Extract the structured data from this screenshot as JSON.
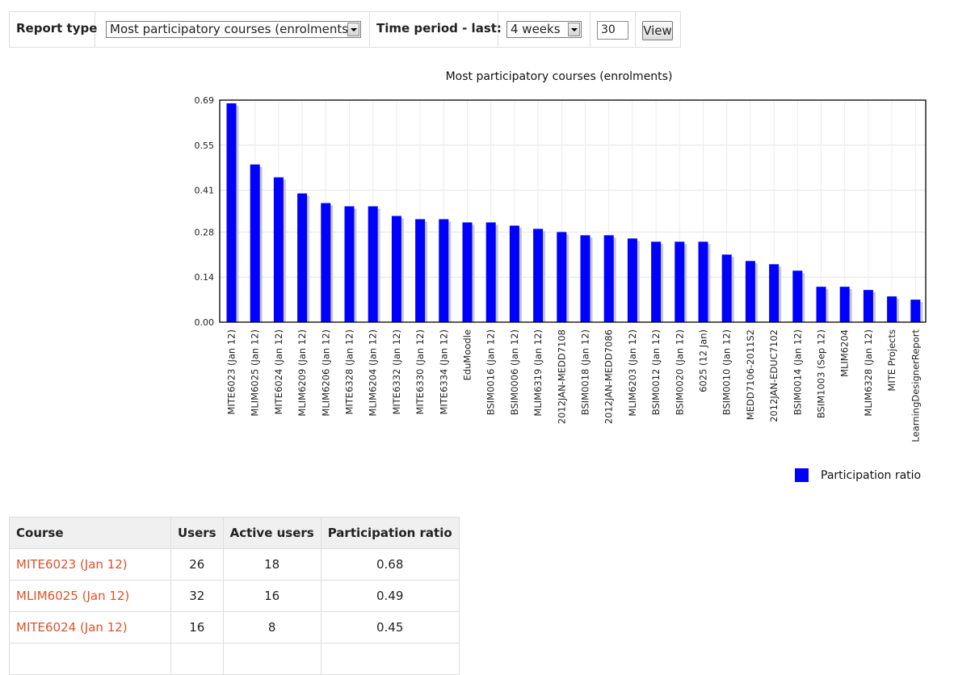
{
  "form": {
    "report_type_label": "Report type",
    "report_type_value": "Most participatory courses (enrolments)",
    "time_period_label": "Time period - last:",
    "time_period_value": "4 weeks",
    "count_value": "30",
    "view_button": "View"
  },
  "chart_data": {
    "type": "bar",
    "title": "Most participatory courses (enrolments)",
    "xlabel": "",
    "ylabel": "",
    "ylim": [
      0,
      0.69
    ],
    "yticks": [
      "0.00",
      "0.14",
      "0.28",
      "0.41",
      "0.55",
      "0.69"
    ],
    "grid": true,
    "legend_position": "bottom-right",
    "categories": [
      "MITE6023 (Jan 12)",
      "MLIM6025 (Jan 12)",
      "MITE6024 (Jan 12)",
      "MLIM6209 (Jan 12)",
      "MLIM6206 (Jan 12)",
      "MITE6328 (Jan 12)",
      "MLIM6204 (Jan 12)",
      "MITE6332 (Jan 12)",
      "MITE6330 (Jan 12)",
      "MITE6334 (Jan 12)",
      "EduMoodle",
      "BSIM0016 (Jan 12)",
      "BSIM0006 (Jan 12)",
      "MLIM6319 (Jan 12)",
      "2012JAN-MEDD7108",
      "BSIM0018 (Jan 12)",
      "2012JAN-MEDD7086",
      "MLIM6203 (Jan 12)",
      "BSIM0012 (Jan 12)",
      "BSIM0020 (Jan 12)",
      "6025 (12 Jan)",
      "BSIM0010 (Jan 12)",
      "MEDD7106-2011S2",
      "2012JAN-EDUC7102",
      "BSIM0014 (Jan 12)",
      "BSIM1003 (Sep 12)",
      "MLIM6204",
      "MLIM6328 (Jan 12)",
      "MITE Projects",
      "LearningDesignerReport"
    ],
    "series": [
      {
        "name": "Participation ratio",
        "color": "#0000ff",
        "values": [
          0.68,
          0.49,
          0.45,
          0.4,
          0.37,
          0.36,
          0.36,
          0.33,
          0.32,
          0.32,
          0.31,
          0.31,
          0.3,
          0.29,
          0.28,
          0.27,
          0.27,
          0.26,
          0.25,
          0.25,
          0.25,
          0.21,
          0.19,
          0.18,
          0.16,
          0.11,
          0.11,
          0.1,
          0.08,
          0.07
        ]
      }
    ]
  },
  "table": {
    "headers": [
      "Course",
      "Users",
      "Active users",
      "Participation ratio"
    ],
    "rows": [
      {
        "course": "MITE6023 (Jan 12)",
        "users": "26",
        "active": "18",
        "ratio": "0.68"
      },
      {
        "course": "MLIM6025 (Jan 12)",
        "users": "32",
        "active": "16",
        "ratio": "0.49"
      },
      {
        "course": "MITE6024 (Jan 12)",
        "users": "16",
        "active": "8",
        "ratio": "0.45"
      }
    ]
  }
}
